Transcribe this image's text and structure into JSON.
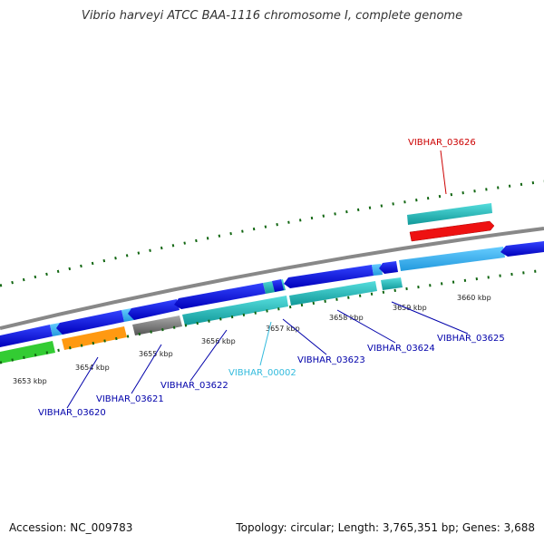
{
  "title": "Vibrio harveyi ATCC BAA-1116 chromosome I, complete genome",
  "footer": {
    "accession": "Accession: NC_009783",
    "summary": "Topology: circular; Length: 3,765,351 bp; Genes: 3,688"
  },
  "ticks": [
    "3653 kbp",
    "3654 kbp",
    "3655 kbp",
    "3656 kbp",
    "3657 kbp",
    "3658 kbp",
    "3659 kbp",
    "3660 kbp"
  ],
  "genes": [
    {
      "label": "VIBHAR_03620",
      "color": "#0000aa"
    },
    {
      "label": "VIBHAR_03621",
      "color": "#0000aa"
    },
    {
      "label": "VIBHAR_03622",
      "color": "#0000aa"
    },
    {
      "label": "VIBHAR_00002",
      "color": "#33bbdd"
    },
    {
      "label": "VIBHAR_03623",
      "color": "#0000aa"
    },
    {
      "label": "VIBHAR_03624",
      "color": "#0000aa"
    },
    {
      "label": "VIBHAR_03625",
      "color": "#0000aa"
    },
    {
      "label": "VIBHAR_03626",
      "color": "#cc0000"
    }
  ]
}
